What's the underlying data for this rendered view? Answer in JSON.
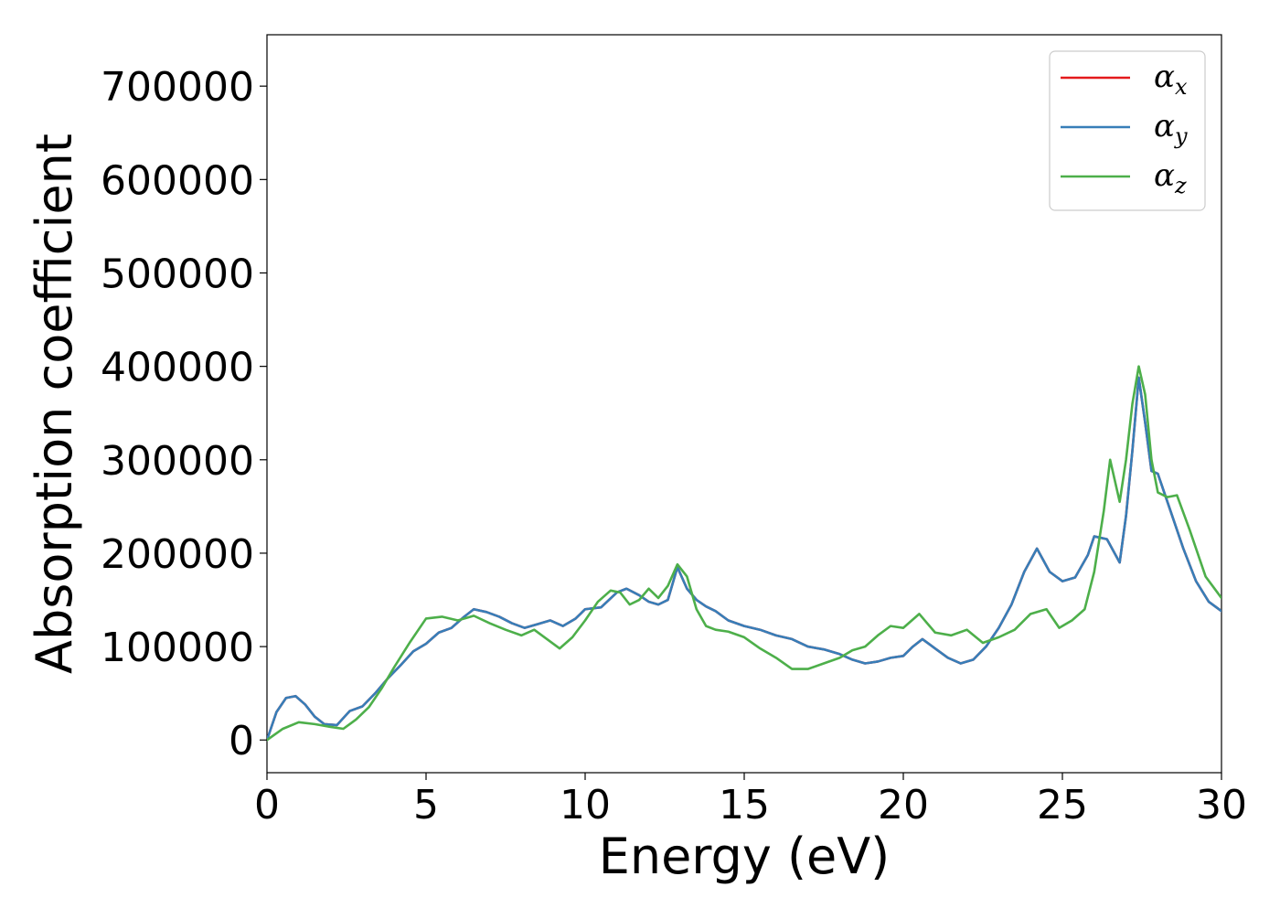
{
  "chart_data": {
    "type": "line",
    "title": "",
    "xlabel": "Energy (eV)",
    "ylabel": "Absorption coefficient",
    "xlim": [
      0,
      30
    ],
    "ylim": [
      -35000,
      755000
    ],
    "xticks": [
      0,
      5,
      10,
      15,
      20,
      25,
      30
    ],
    "yticks": [
      0,
      100000,
      200000,
      300000,
      400000,
      500000,
      600000,
      700000
    ],
    "grid": false,
    "legend_position": "top-right",
    "series": [
      {
        "name": "αx",
        "legend_base": "α",
        "legend_sub": "x",
        "color": "#e41a1c",
        "x": [
          0,
          0.3,
          0.6,
          0.9,
          1.2,
          1.5,
          1.8,
          2.2,
          2.6,
          3.0,
          3.4,
          3.8,
          4.2,
          4.6,
          5.0,
          5.4,
          5.8,
          6.2,
          6.5,
          6.9,
          7.3,
          7.7,
          8.1,
          8.5,
          8.9,
          9.3,
          9.7,
          10.0,
          10.5,
          11.0,
          11.3,
          11.7,
          12.0,
          12.3,
          12.6,
          12.9,
          13.2,
          13.5,
          13.8,
          14.1,
          14.5,
          15.0,
          15.5,
          16.0,
          16.5,
          17.0,
          17.5,
          18.0,
          18.4,
          18.8,
          19.2,
          19.6,
          20.0,
          20.3,
          20.6,
          21.0,
          21.4,
          21.8,
          22.2,
          22.6,
          23.0,
          23.4,
          23.8,
          24.2,
          24.6,
          25.0,
          25.4,
          25.8,
          26.0,
          26.4,
          26.8,
          27.0,
          27.2,
          27.4,
          27.6,
          27.8,
          28.0,
          28.4,
          28.8,
          29.2,
          29.6,
          30.0
        ],
        "y": [
          0,
          30000,
          45000,
          47000,
          38000,
          25000,
          17000,
          16000,
          31000,
          36000,
          50000,
          66000,
          80000,
          95000,
          103000,
          115000,
          120000,
          132000,
          140000,
          137000,
          132000,
          125000,
          120000,
          124000,
          128000,
          122000,
          130000,
          140000,
          142000,
          158000,
          162000,
          155000,
          148000,
          145000,
          150000,
          185000,
          162000,
          150000,
          143000,
          138000,
          128000,
          122000,
          118000,
          112000,
          108000,
          100000,
          97000,
          92000,
          86000,
          82000,
          84000,
          88000,
          90000,
          100000,
          108000,
          98000,
          88000,
          82000,
          86000,
          100000,
          120000,
          145000,
          180000,
          205000,
          180000,
          170000,
          174000,
          198000,
          218000,
          215000,
          190000,
          240000,
          310000,
          388000,
          340000,
          288000,
          285000,
          245000,
          205000,
          170000,
          148000,
          138000
        ]
      },
      {
        "name": "αy",
        "legend_base": "α",
        "legend_sub": "y",
        "color": "#377eb8",
        "x": [
          0,
          0.3,
          0.6,
          0.9,
          1.2,
          1.5,
          1.8,
          2.2,
          2.6,
          3.0,
          3.4,
          3.8,
          4.2,
          4.6,
          5.0,
          5.4,
          5.8,
          6.2,
          6.5,
          6.9,
          7.3,
          7.7,
          8.1,
          8.5,
          8.9,
          9.3,
          9.7,
          10.0,
          10.5,
          11.0,
          11.3,
          11.7,
          12.0,
          12.3,
          12.6,
          12.9,
          13.2,
          13.5,
          13.8,
          14.1,
          14.5,
          15.0,
          15.5,
          16.0,
          16.5,
          17.0,
          17.5,
          18.0,
          18.4,
          18.8,
          19.2,
          19.6,
          20.0,
          20.3,
          20.6,
          21.0,
          21.4,
          21.8,
          22.2,
          22.6,
          23.0,
          23.4,
          23.8,
          24.2,
          24.6,
          25.0,
          25.4,
          25.8,
          26.0,
          26.4,
          26.8,
          27.0,
          27.2,
          27.4,
          27.6,
          27.8,
          28.0,
          28.4,
          28.8,
          29.2,
          29.6,
          30.0
        ],
        "y": [
          0,
          30000,
          45000,
          47000,
          38000,
          25000,
          17000,
          16000,
          31000,
          36000,
          50000,
          66000,
          80000,
          95000,
          103000,
          115000,
          120000,
          132000,
          140000,
          137000,
          132000,
          125000,
          120000,
          124000,
          128000,
          122000,
          130000,
          140000,
          142000,
          158000,
          162000,
          155000,
          148000,
          145000,
          150000,
          185000,
          162000,
          150000,
          143000,
          138000,
          128000,
          122000,
          118000,
          112000,
          108000,
          100000,
          97000,
          92000,
          86000,
          82000,
          84000,
          88000,
          90000,
          100000,
          108000,
          98000,
          88000,
          82000,
          86000,
          100000,
          120000,
          145000,
          180000,
          205000,
          180000,
          170000,
          174000,
          198000,
          218000,
          215000,
          190000,
          240000,
          310000,
          388000,
          340000,
          288000,
          285000,
          245000,
          205000,
          170000,
          148000,
          138000
        ]
      },
      {
        "name": "αz",
        "legend_base": "α",
        "legend_sub": "z",
        "color": "#4daf4a",
        "x": [
          0,
          0.5,
          1.0,
          1.5,
          2.0,
          2.4,
          2.8,
          3.2,
          3.6,
          4.0,
          4.5,
          5.0,
          5.5,
          6.0,
          6.5,
          7.0,
          7.5,
          8.0,
          8.4,
          8.8,
          9.2,
          9.6,
          10.0,
          10.4,
          10.8,
          11.1,
          11.4,
          11.7,
          12.0,
          12.3,
          12.6,
          12.9,
          13.2,
          13.5,
          13.8,
          14.1,
          14.5,
          15.0,
          15.5,
          16.0,
          16.5,
          17.0,
          17.5,
          18.0,
          18.4,
          18.8,
          19.2,
          19.6,
          20.0,
          20.5,
          21.0,
          21.5,
          22.0,
          22.5,
          23.0,
          23.5,
          24.0,
          24.5,
          24.9,
          25.3,
          25.7,
          26.0,
          26.3,
          26.5,
          26.8,
          27.0,
          27.2,
          27.4,
          27.6,
          27.8,
          28.0,
          28.3,
          28.6,
          29.0,
          29.5,
          30.0
        ],
        "y": [
          0,
          12000,
          19000,
          17000,
          14000,
          12000,
          22000,
          35000,
          55000,
          78000,
          105000,
          130000,
          132000,
          128000,
          133000,
          125000,
          118000,
          112000,
          118000,
          108000,
          98000,
          110000,
          128000,
          148000,
          160000,
          158000,
          145000,
          150000,
          162000,
          152000,
          165000,
          188000,
          175000,
          140000,
          122000,
          118000,
          116000,
          110000,
          98000,
          88000,
          76000,
          76000,
          82000,
          88000,
          96000,
          100000,
          112000,
          122000,
          120000,
          135000,
          115000,
          112000,
          118000,
          104000,
          110000,
          118000,
          135000,
          140000,
          120000,
          128000,
          140000,
          180000,
          245000,
          300000,
          255000,
          300000,
          360000,
          400000,
          370000,
          300000,
          265000,
          260000,
          262000,
          225000,
          175000,
          152000
        ]
      }
    ]
  }
}
